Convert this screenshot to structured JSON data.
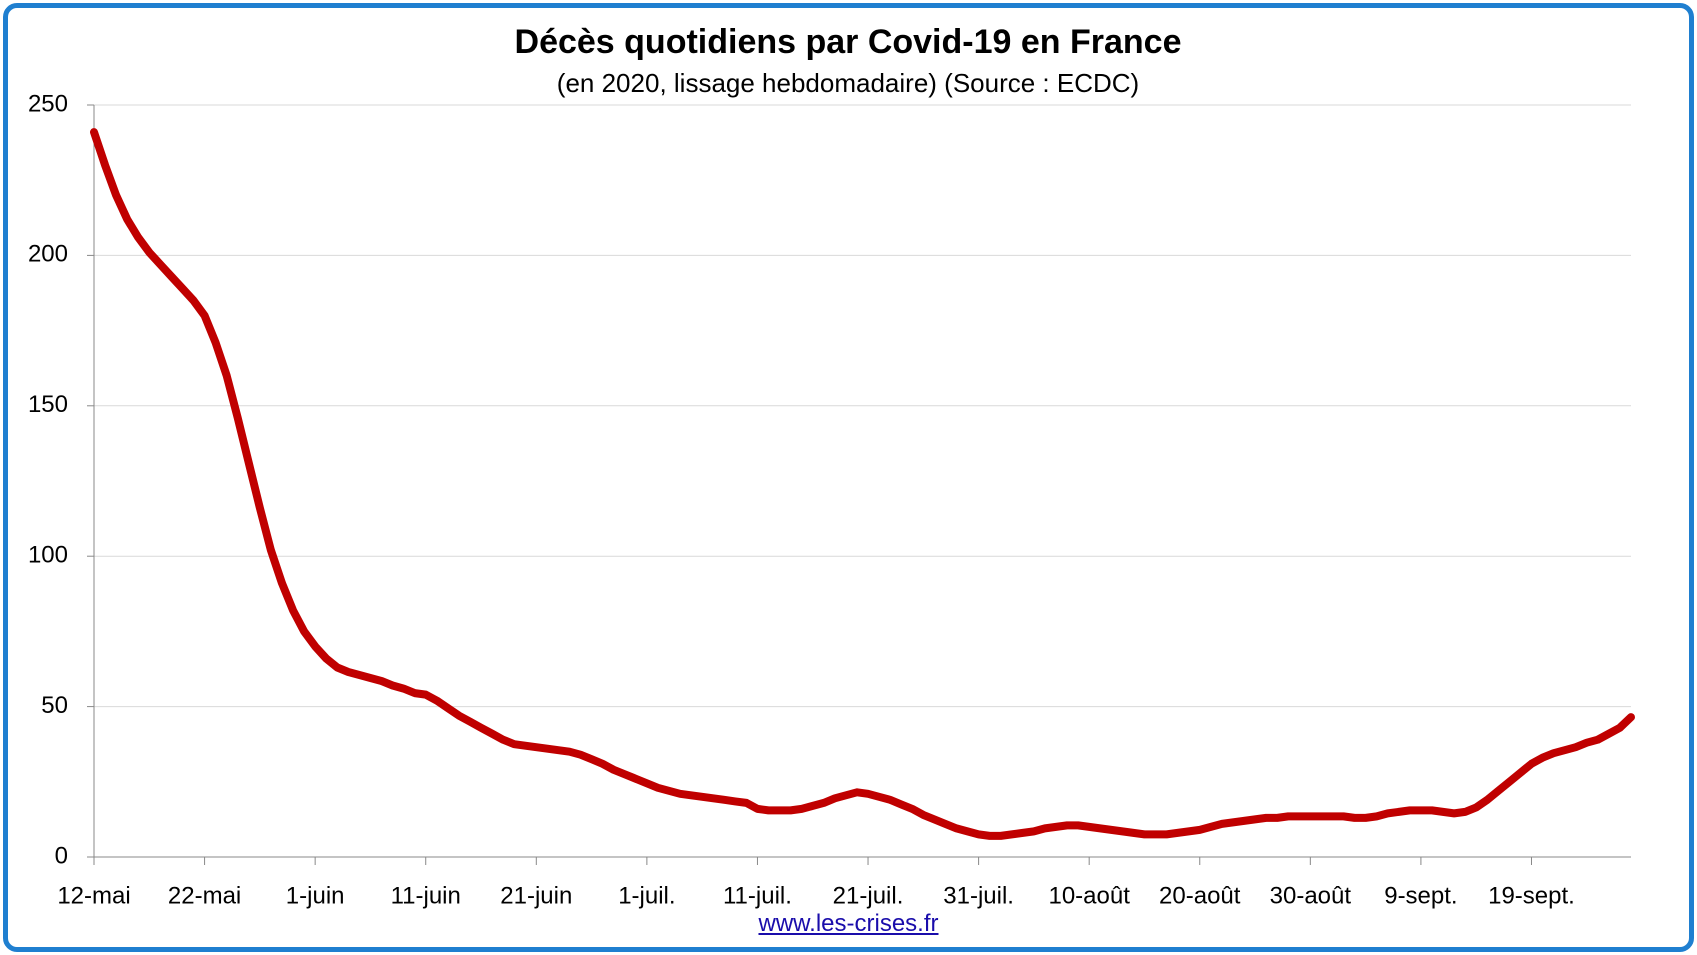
{
  "chart_data": {
    "type": "line",
    "title": "Décès quotidiens par Covid-19 en France",
    "subtitle": "(en 2020, lissage hebdomadaire) (Source : ECDC)",
    "source": "www.les-crises.fr",
    "categories": [
      "12-mai",
      null,
      null,
      null,
      null,
      null,
      null,
      null,
      null,
      null,
      "22-mai",
      null,
      null,
      null,
      null,
      null,
      null,
      null,
      null,
      null,
      "1-juin",
      null,
      null,
      null,
      null,
      null,
      null,
      null,
      null,
      null,
      "11-juin",
      null,
      null,
      null,
      null,
      null,
      null,
      null,
      null,
      null,
      "21-juin",
      null,
      null,
      null,
      null,
      null,
      null,
      null,
      null,
      null,
      "1-juil.",
      null,
      null,
      null,
      null,
      null,
      null,
      null,
      null,
      null,
      "11-juil.",
      null,
      null,
      null,
      null,
      null,
      null,
      null,
      null,
      null,
      "21-juil.",
      null,
      null,
      null,
      null,
      null,
      null,
      null,
      null,
      null,
      "31-juil.",
      null,
      null,
      null,
      null,
      null,
      null,
      null,
      null,
      null,
      "10-août",
      null,
      null,
      null,
      null,
      null,
      null,
      null,
      null,
      null,
      "20-août",
      null,
      null,
      null,
      null,
      null,
      null,
      null,
      null,
      null,
      "30-août",
      null,
      null,
      null,
      null,
      null,
      null,
      null,
      null,
      null,
      "9-sept.",
      null,
      null,
      null,
      null,
      null,
      null,
      null,
      null,
      null,
      "19-sept.",
      null,
      null,
      null,
      null,
      null,
      null,
      null,
      null,
      null
    ],
    "series": [
      {
        "color": "#c00000",
        "values": [
          241,
          230,
          220,
          212,
          206,
          201,
          197,
          193,
          189,
          185,
          180,
          171,
          160,
          146,
          131,
          116,
          102,
          91,
          82,
          75,
          70,
          66,
          63,
          61.5,
          60.5,
          59.5,
          58.5,
          57,
          56,
          54.5,
          54,
          52,
          49.5,
          47,
          45,
          43,
          41,
          39,
          37.5,
          37,
          36.5,
          36,
          35.5,
          35,
          34,
          32.5,
          31,
          29,
          27.5,
          26,
          24.5,
          23,
          22,
          21,
          20.5,
          20,
          19.5,
          19,
          18.5,
          18,
          16,
          15.5,
          15.5,
          15.5,
          16,
          17,
          18,
          19.5,
          20.5,
          21.5,
          21,
          20,
          19,
          17.5,
          16,
          14,
          12.5,
          11,
          9.5,
          8.5,
          7.5,
          7,
          7,
          7.5,
          8,
          8.5,
          9.5,
          10,
          10.5,
          10.5,
          10,
          9.5,
          9,
          8.5,
          8,
          7.5,
          7.5,
          7.5,
          8,
          8.5,
          9,
          10,
          11,
          11.5,
          12,
          12.5,
          13,
          13,
          13.5,
          13.5,
          13.5,
          13.5,
          13.5,
          13.5,
          13,
          13,
          13.5,
          14.5,
          15,
          15.5,
          15.5,
          15.5,
          15,
          14.5,
          15,
          16.5,
          19,
          22,
          25,
          28,
          31,
          33,
          34.5,
          35.5,
          36.5,
          38,
          39,
          41,
          43,
          46.5
        ]
      }
    ],
    "ylim": [
      0,
      250
    ],
    "yticks": [
      0,
      50,
      100,
      150,
      200,
      250
    ],
    "grid": true
  }
}
